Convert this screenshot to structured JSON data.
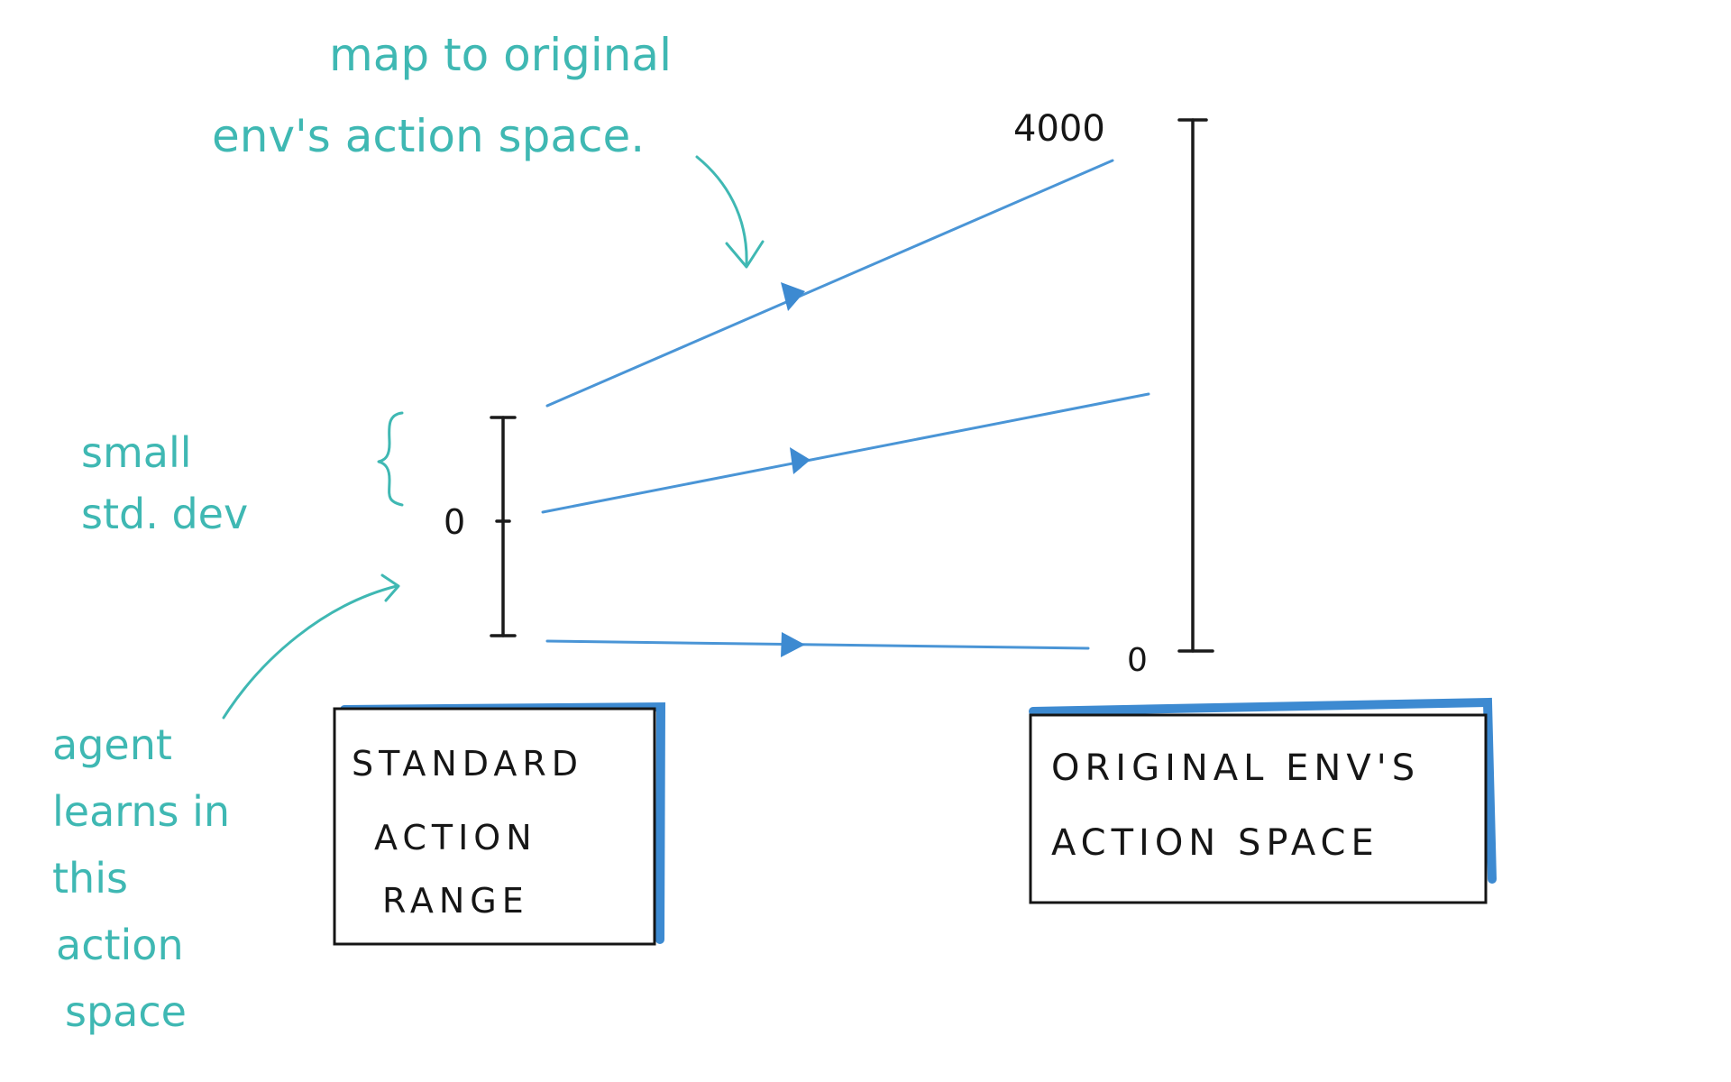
{
  "annotations": {
    "map_line1": "map to original",
    "map_line2": "env's action space.",
    "small_line1": "small",
    "small_line2": "std. dev",
    "agent_line1": "agent",
    "agent_line2": "learns in",
    "agent_line3": "this",
    "agent_line4": "action",
    "agent_line5": "space"
  },
  "left_axis": {
    "zero_label": "0"
  },
  "right_axis": {
    "top_label": "4000",
    "zero_label": "0"
  },
  "boxes": {
    "standard": {
      "line1": "STANDARD",
      "line2": "ACTION",
      "line3": "RANGE"
    },
    "original": {
      "line1": "ORIGINAL ENV'S",
      "line2": "ACTION SPACE"
    }
  },
  "colors": {
    "annotation": "#3fb8b3",
    "mapping_arrow": "#4a95d6",
    "axis": "#1a1a1a",
    "box_accent": "#3d8ad1"
  }
}
